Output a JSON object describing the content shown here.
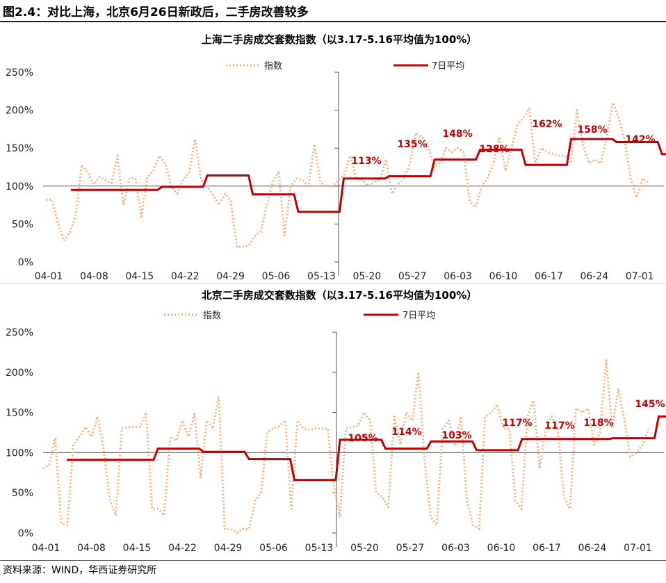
{
  "figure": {
    "title": "图2.4：对比上海，北京6月26日新政后，二手房改善较多",
    "source": "资料来源：WIND，华西证券研究所"
  },
  "colors": {
    "index": "#f4b183",
    "avg": "#c00000",
    "axis": "#555555"
  },
  "chart_data": [
    {
      "type": "line",
      "title": "上海二手房成交套数指数（以3.17-5.16平均值为100%）",
      "x_ticks": [
        "04-01",
        "04-08",
        "04-15",
        "04-22",
        "04-29",
        "05-06",
        "05-13",
        "05-20",
        "05-27",
        "06-03",
        "06-10",
        "06-17",
        "06-24",
        "07-01"
      ],
      "ylim": [
        0,
        250
      ],
      "y_ticks": [
        "0%",
        "50%",
        "100%",
        "150%",
        "200%",
        "250%"
      ],
      "series": [
        {
          "name": "指数",
          "style": "dotted",
          "values": [
            82,
            82,
            52,
            28,
            38,
            60,
            128,
            118,
            102,
            112,
            108,
            104,
            140,
            75,
            110,
            110,
            60,
            112,
            120,
            140,
            130,
            100,
            90,
            108,
            118,
            162,
            108,
            100,
            88,
            75,
            90,
            80,
            20,
            20,
            22,
            34,
            40,
            75,
            105,
            120,
            35,
            100,
            110,
            108,
            100,
            155,
            105,
            100,
            100,
            108,
            115,
            140,
            110,
            108,
            100,
            105,
            110,
            135,
            90,
            102,
            110,
            130,
            170,
            165,
            155,
            125,
            130,
            150,
            145,
            150,
            145,
            80,
            72,
            100,
            110,
            130,
            165,
            120,
            150,
            180,
            190,
            202,
            130,
            150,
            145,
            142,
            140,
            140,
            130,
            200,
            155,
            130,
            135,
            130,
            165,
            210,
            190,
            160,
            110,
            85,
            110,
            105
          ]
        },
        {
          "name": "7日平均",
          "style": "solid",
          "values": [
            95,
            95,
            99,
            114,
            89,
            66,
            110,
            113,
            135,
            148,
            128,
            162,
            158,
            142
          ]
        }
      ],
      "data_labels": [
        "113%",
        "135%",
        "148%",
        "128%",
        "162%",
        "158%",
        "142%"
      ]
    },
    {
      "type": "line",
      "title": "北京二手房成交套数指数（以3.17-5.16平均值为100%）",
      "x_ticks": [
        "04-01",
        "04-08",
        "04-15",
        "04-22",
        "04-29",
        "05-06",
        "05-13",
        "05-20",
        "05-27",
        "06-03",
        "06-10",
        "06-17",
        "06-24",
        "07-01"
      ],
      "ylim": [
        0,
        250
      ],
      "y_ticks": [
        "0%",
        "50%",
        "100%",
        "150%",
        "200%",
        "250%"
      ],
      "series": [
        {
          "name": "指数",
          "style": "dotted",
          "values": [
            80,
            85,
            118,
            12,
            10,
            110,
            120,
            132,
            120,
            145,
            105,
            42,
            22,
            130,
            132,
            132,
            132,
            150,
            30,
            30,
            22,
            120,
            115,
            140,
            120,
            148,
            68,
            140,
            130,
            170,
            5,
            5,
            0,
            5,
            5,
            40,
            50,
            125,
            130,
            133,
            140,
            30,
            140,
            130,
            128,
            130,
            130,
            130,
            60,
            20,
            130,
            132,
            133,
            150,
            140,
            50,
            45,
            32,
            145,
            110,
            150,
            140,
            200,
            90,
            20,
            10,
            130,
            140,
            110,
            145,
            40,
            10,
            5,
            145,
            150,
            160,
            130,
            130,
            40,
            30,
            145,
            165,
            80,
            130,
            145,
            130,
            45,
            30,
            155,
            150,
            155,
            110,
            125,
            215,
            130,
            180,
            140,
            95,
            100,
            110,
            130
          ]
        },
        {
          "name": "7日平均",
          "style": "solid",
          "values": [
            91,
            91,
            105,
            101,
            92,
            66,
            116,
            105,
            114,
            103,
            117,
            117,
            118,
            145
          ]
        }
      ],
      "data_labels": [
        "105%",
        "114%",
        "103%",
        "117%",
        "117%",
        "118%",
        "145%"
      ]
    }
  ]
}
